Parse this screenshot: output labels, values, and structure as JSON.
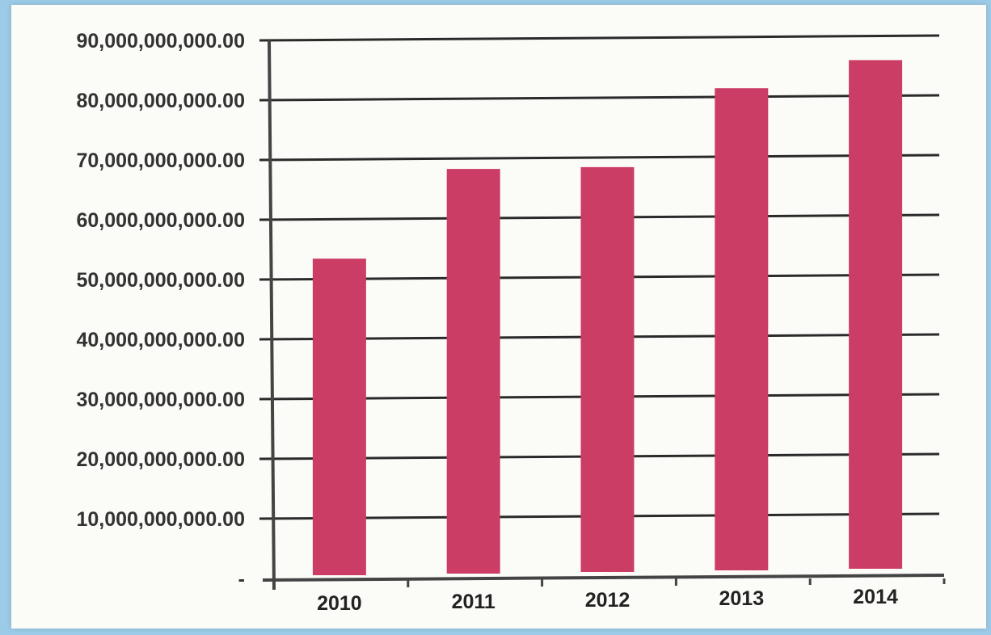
{
  "chart_data": {
    "type": "bar",
    "title": "",
    "xlabel": "",
    "ylabel": "",
    "categories": [
      "2010",
      "2011",
      "2012",
      "2013",
      "2014"
    ],
    "values": [
      53500000000,
      68500000000,
      68800000000,
      82000000000,
      86700000000
    ],
    "ylim": [
      0,
      90000000000
    ],
    "y_ticks": [
      {
        "value": 0,
        "label": "-"
      },
      {
        "value": 10000000000,
        "label": "10,000,000,000.00"
      },
      {
        "value": 20000000000,
        "label": "20,000,000,000.00"
      },
      {
        "value": 30000000000,
        "label": "30,000,000,000.00"
      },
      {
        "value": 40000000000,
        "label": "40,000,000,000.00"
      },
      {
        "value": 50000000000,
        "label": "50,000,000,000.00"
      },
      {
        "value": 60000000000,
        "label": "60,000,000,000.00"
      },
      {
        "value": 70000000000,
        "label": "70,000,000,000.00"
      },
      {
        "value": 80000000000,
        "label": "80,000,000,000.00"
      },
      {
        "value": 90000000000,
        "label": "90,000,000,000.00"
      }
    ],
    "grid": true,
    "legend": "none",
    "bar_color": "#cc3d66",
    "gridline_color": "#2a2a2a"
  }
}
